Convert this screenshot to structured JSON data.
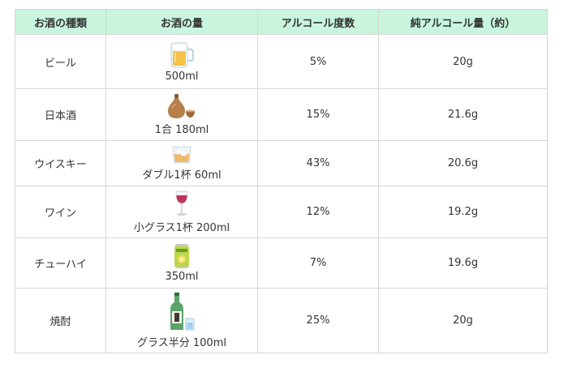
{
  "table": {
    "headers": [
      "お酒の種類",
      "お酒の量",
      "アルコール度数",
      "純アルコール量（約）"
    ],
    "rows": [
      {
        "type": "ビール",
        "amount": "500ml",
        "abv": "5%",
        "pure_alcohol": "20g",
        "icon": "beer-mug-icon"
      },
      {
        "type": "日本酒",
        "amount": "1合 180ml",
        "abv": "15%",
        "pure_alcohol": "21.6g",
        "icon": "sake-bottle-icon"
      },
      {
        "type": "ウイスキー",
        "amount": "ダブル1杯 60ml",
        "abv": "43%",
        "pure_alcohol": "20.6g",
        "icon": "whisky-glass-icon"
      },
      {
        "type": "ワイン",
        "amount": "小グラス1杯 200ml",
        "abv": "12%",
        "pure_alcohol": "19.2g",
        "icon": "wine-glass-icon"
      },
      {
        "type": "チューハイ",
        "amount": "350ml",
        "abv": "7%",
        "pure_alcohol": "19.6g",
        "icon": "chuhai-can-icon"
      },
      {
        "type": "焼酎",
        "amount": "グラス半分 100ml",
        "abv": "25%",
        "pure_alcohol": "20g",
        "icon": "shochu-bottle-icon"
      }
    ]
  },
  "colors": {
    "header_background": "#c9f5df",
    "border": "#d6d6d6",
    "text": "#333333"
  }
}
